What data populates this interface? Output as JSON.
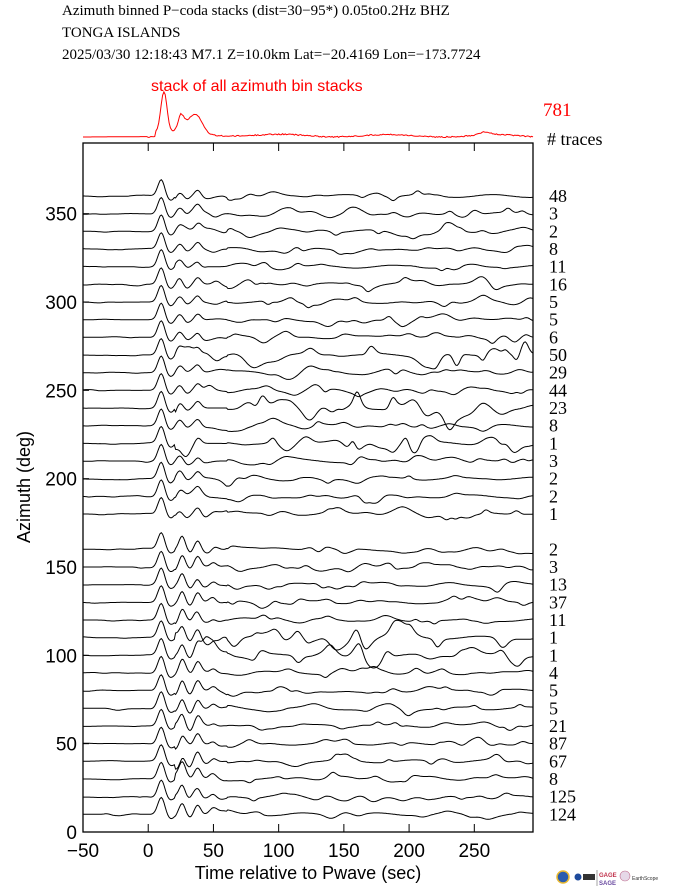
{
  "header": {
    "line1": "Azimuth binned P−coda stacks (dist=30−95*)  0.05to0.2Hz  BHZ",
    "line2": "TONGA ISLANDS",
    "line3": "2025/03/30  12:18:43  M7.1  Z=10.0km Lat=−20.4169 Lon=−173.7724"
  },
  "logos": {
    "text": [
      "GAGE",
      "SAGE",
      "EarthScope"
    ]
  },
  "colors": {
    "stack": "#ff0000",
    "trace": "#000000",
    "axis": "#000000"
  },
  "chart_data": {
    "type": "line",
    "title": "Azimuth binned P-coda stacks",
    "xlabel": "Time relative to Pwave (sec)",
    "ylabel": "Azimuth (deg)",
    "xlim": [
      -50,
      295
    ],
    "ylim": [
      0,
      390
    ],
    "xticks": [
      "−50",
      "0",
      "50",
      "100",
      "150",
      "200",
      "250"
    ],
    "xtick_values": [
      -50,
      0,
      50,
      100,
      150,
      200,
      250
    ],
    "yticks": [
      "0",
      "50",
      "100",
      "150",
      "200",
      "250",
      "300",
      "350"
    ],
    "ytick_values": [
      0,
      50,
      100,
      150,
      200,
      250,
      300,
      350
    ],
    "stack": {
      "label": "stack of all azimuth bin stacks",
      "count": "781",
      "peak_time": 12
    },
    "count_header": "# traces",
    "traces": [
      {
        "azimuth": 10,
        "count": "124"
      },
      {
        "azimuth": 20,
        "count": "125"
      },
      {
        "azimuth": 30,
        "count": "8"
      },
      {
        "azimuth": 40,
        "count": "67"
      },
      {
        "azimuth": 50,
        "count": "87"
      },
      {
        "azimuth": 60,
        "count": "21"
      },
      {
        "azimuth": 70,
        "count": "5"
      },
      {
        "azimuth": 80,
        "count": "5"
      },
      {
        "azimuth": 90,
        "count": "4"
      },
      {
        "azimuth": 100,
        "count": "1"
      },
      {
        "azimuth": 110,
        "count": "1"
      },
      {
        "azimuth": 120,
        "count": "11"
      },
      {
        "azimuth": 130,
        "count": "37"
      },
      {
        "azimuth": 140,
        "count": "13"
      },
      {
        "azimuth": 150,
        "count": "3"
      },
      {
        "azimuth": 160,
        "count": "2"
      },
      {
        "azimuth": 180,
        "count": "1"
      },
      {
        "azimuth": 190,
        "count": "2"
      },
      {
        "azimuth": 200,
        "count": "2"
      },
      {
        "azimuth": 210,
        "count": "3"
      },
      {
        "azimuth": 220,
        "count": "1"
      },
      {
        "azimuth": 230,
        "count": "8"
      },
      {
        "azimuth": 240,
        "count": "23"
      },
      {
        "azimuth": 250,
        "count": "44"
      },
      {
        "azimuth": 260,
        "count": "29"
      },
      {
        "azimuth": 270,
        "count": "50"
      },
      {
        "azimuth": 280,
        "count": "6"
      },
      {
        "azimuth": 290,
        "count": "5"
      },
      {
        "azimuth": 300,
        "count": "5"
      },
      {
        "azimuth": 310,
        "count": "16"
      },
      {
        "azimuth": 320,
        "count": "11"
      },
      {
        "azimuth": 330,
        "count": "8"
      },
      {
        "azimuth": 340,
        "count": "2"
      },
      {
        "azimuth": 350,
        "count": "3"
      },
      {
        "azimuth": 360,
        "count": "48"
      }
    ]
  }
}
